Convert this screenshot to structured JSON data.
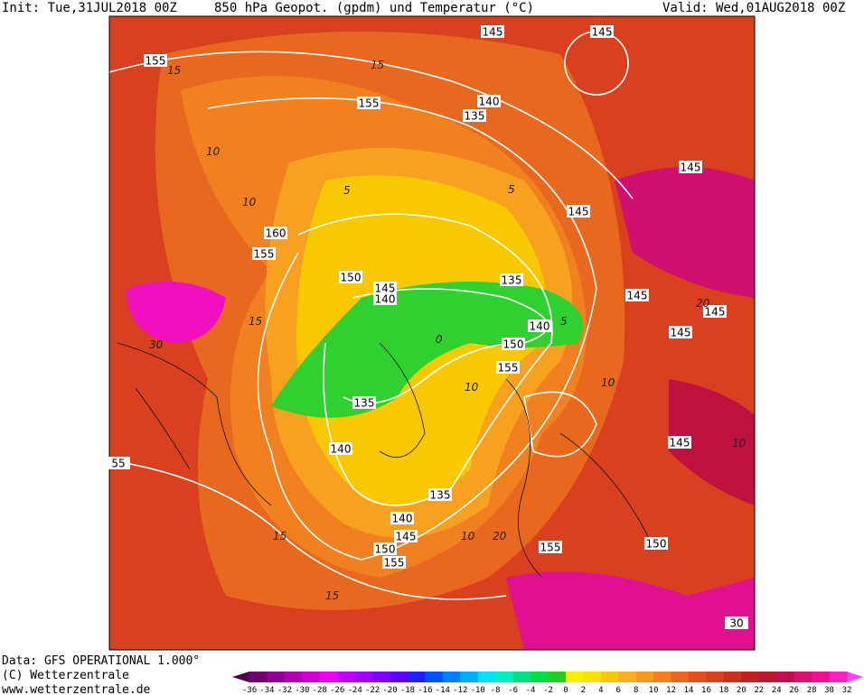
{
  "header": {
    "init": "Init: Tue,31JUL2018 00Z",
    "title": "850 hPa Geopot. (gpdm) und Temperatur (°C)",
    "valid": "Valid: Wed,01AUG2018 00Z"
  },
  "footer": {
    "data_source": "Data: GFS OPERATIONAL 1.000°",
    "copyright": "(C) Wetterzentrale",
    "url": "www.wetterzentrale.de"
  },
  "map": {
    "contour_labels": [
      155,
      145,
      145,
      155,
      140,
      135,
      145,
      145,
      160,
      155,
      150,
      145,
      140,
      135,
      145,
      145,
      140,
      145,
      150,
      155,
      135,
      145,
      140,
      55,
      135,
      140,
      145,
      150,
      150,
      155,
      155,
      30
    ],
    "temperature_labels": [
      15,
      15,
      10,
      10,
      5,
      10,
      10,
      15,
      5,
      0,
      5,
      10,
      20,
      20,
      15,
      15,
      10,
      30
    ]
  },
  "legend": {
    "levels": [
      -36,
      -34,
      -32,
      -30,
      -28,
      -26,
      -24,
      -22,
      -20,
      -18,
      -16,
      -14,
      -12,
      -10,
      -8,
      -6,
      -4,
      -2,
      0,
      2,
      4,
      6,
      8,
      10,
      12,
      14,
      16,
      18,
      20,
      22,
      24,
      26,
      28,
      30,
      32
    ],
    "colors": [
      "#700070",
      "#900090",
      "#b000b0",
      "#d000d0",
      "#f000f0",
      "#c000ff",
      "#a000ff",
      "#8000ff",
      "#6000ff",
      "#2020ff",
      "#0050ff",
      "#0080ff",
      "#00b0ff",
      "#00e0ff",
      "#00f0c0",
      "#00e080",
      "#00e040",
      "#20d020",
      "#f8f000",
      "#f8e000",
      "#f8c800",
      "#f8b020",
      "#f89820",
      "#f08020",
      "#e86820",
      "#e05020",
      "#d84020",
      "#c83020",
      "#c02020",
      "#b81830",
      "#c01050",
      "#d81070",
      "#f01090",
      "#ff20c0"
    ]
  }
}
